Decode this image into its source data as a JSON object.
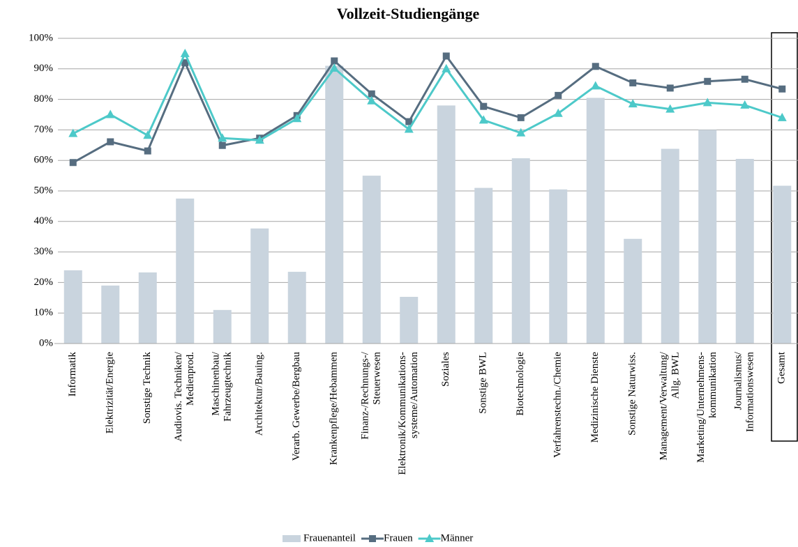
{
  "chart_data": {
    "type": "bar_line",
    "title": "Vollzeit-Studiengänge",
    "categories": [
      [
        "Informatik"
      ],
      [
        "Elektrizität/Energie"
      ],
      [
        "Sonstige Technik"
      ],
      [
        "Audiovis. Techniken/",
        "Medienprod."
      ],
      [
        "Maschinenbau/",
        "Fahrzeugtechnik"
      ],
      [
        "Architektur/Bauing."
      ],
      [
        "Verarb. Gewerbe/Bergbau"
      ],
      [
        "Krankenpflege/Hebammen"
      ],
      [
        "Finanz-/Rechnungs-/",
        "Steuerwesen"
      ],
      [
        "Elektronik/Kommunikations-",
        "systeme/Automation"
      ],
      [
        "Soziales"
      ],
      [
        "Sonstige BWL"
      ],
      [
        "Biotechnologie"
      ],
      [
        "Verfahrenstechn./Chemie"
      ],
      [
        "Medizinische Dienste"
      ],
      [
        "Sonstige Naturwiss."
      ],
      [
        "Management/Verwaltung/",
        "Allg. BWL"
      ],
      [
        "Marketing/Unternehmens-",
        "kommunikation"
      ],
      [
        "Journalismus/",
        "Informationswesen"
      ],
      [
        "Gesamt"
      ]
    ],
    "series": [
      {
        "name": "Frauenanteil",
        "type": "bar",
        "color": "#c9d4de",
        "values": [
          24,
          19,
          23.3,
          47.5,
          11,
          37.7,
          23.5,
          91,
          55,
          15.3,
          78,
          51,
          60.7,
          50.5,
          80.5,
          34.3,
          63.8,
          70,
          60.5,
          51.7
        ]
      },
      {
        "name": "Frauen",
        "type": "line",
        "marker": "square",
        "color": "#566d80",
        "values": [
          59.3,
          66.1,
          63.1,
          92,
          64.9,
          67.3,
          74.7,
          92.6,
          81.8,
          72.7,
          94.2,
          77.7,
          74,
          81.3,
          90.8,
          85.4,
          83.7,
          85.9,
          86.6,
          83.4
        ]
      },
      {
        "name": "Männer",
        "type": "line",
        "marker": "triangle",
        "color": "#4dc9c9",
        "values": [
          68.8,
          75,
          68.2,
          95,
          67.3,
          66.6,
          73.7,
          90.2,
          79.5,
          70.2,
          90,
          73.2,
          69,
          75.4,
          84.4,
          78.5,
          76.8,
          78.9,
          78.1,
          74
        ]
      }
    ],
    "ylim": [
      0,
      100
    ],
    "yticks": [
      {
        "value": 0,
        "label": "0%"
      },
      {
        "value": 10,
        "label": "10%"
      },
      {
        "value": 20,
        "label": "20%"
      },
      {
        "value": 30,
        "label": "30%"
      },
      {
        "value": 40,
        "label": "40%"
      },
      {
        "value": 50,
        "label": "50%"
      },
      {
        "value": 60,
        "label": "60%"
      },
      {
        "value": 70,
        "label": "70%"
      },
      {
        "value": 80,
        "label": "80%"
      },
      {
        "value": 90,
        "label": "90%"
      },
      {
        "value": 100,
        "label": "100%"
      }
    ],
    "grid": true,
    "legend": "bottom"
  }
}
